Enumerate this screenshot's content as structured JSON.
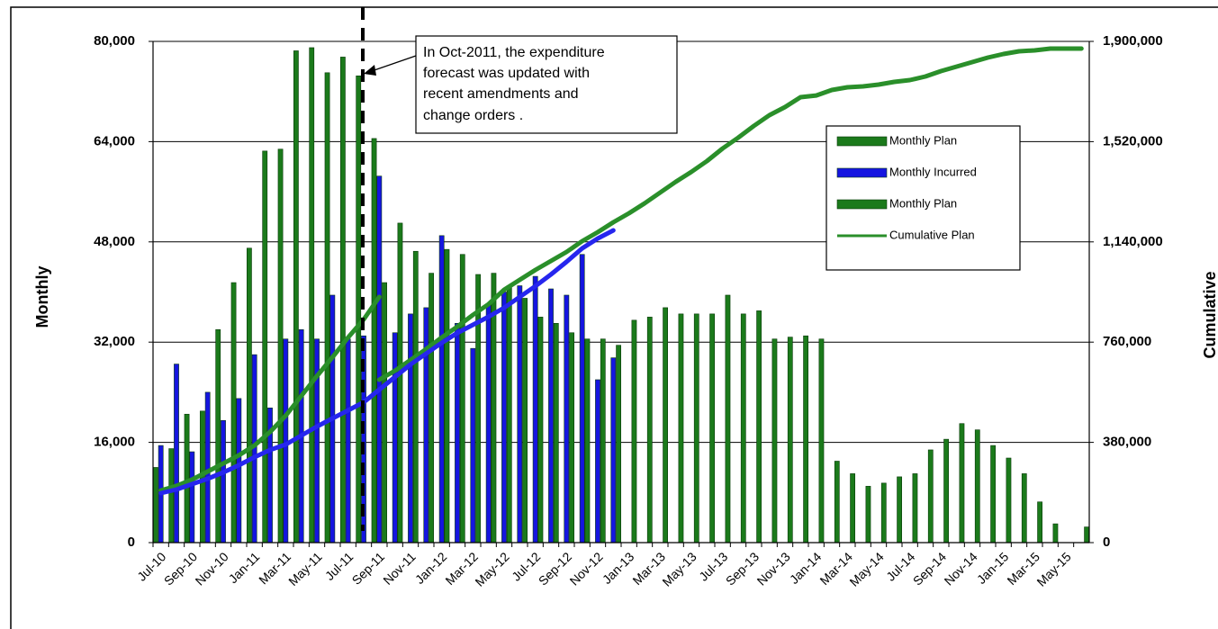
{
  "chart_data": {
    "type": "combo",
    "y_axis_title": "Monthly",
    "y2_axis_title": "Cumulative",
    "annotation": [
      "In  Oct-2011, the expenditure",
      "forecast was updated with",
      "recent amendments and",
      "change orders ."
    ],
    "categories": [
      "Jul-10",
      null,
      "Sep-10",
      null,
      "Nov-10",
      null,
      "Jan-11",
      null,
      "Mar-11",
      null,
      "May-11",
      null,
      "Jul-11",
      null,
      "Sep-11",
      null,
      "Nov-11",
      null,
      "Jan-12",
      null,
      "Mar-12",
      null,
      "May-12",
      null,
      "Jul-12",
      null,
      "Sep-12",
      null,
      "Nov-12",
      null,
      "Jan-13",
      null,
      "Mar-13",
      null,
      "May-13",
      null,
      "Jul-13",
      null,
      "Sep-13",
      null,
      "Nov-13",
      null,
      "Jan-14",
      null,
      "Mar-14",
      null,
      "May-14",
      null,
      "Jul-14",
      null,
      "Sep-14",
      null,
      "Nov-14",
      null,
      "Jan-15",
      null,
      "Mar-15",
      null,
      "May-15",
      null
    ],
    "ylim": [
      0,
      80000
    ],
    "yticks": [
      0,
      {
        "value": 16000,
        "label": "16,000"
      },
      {
        "value": 32000,
        "label": "32,000"
      },
      {
        "value": 48000,
        "label": "48,000"
      },
      {
        "value": 64000,
        "label": "64,000"
      },
      {
        "value": 80000,
        "label": "80,000"
      }
    ],
    "y2lim": [
      0,
      1900000
    ],
    "y2ticks": [
      0,
      {
        "value": 380000,
        "label": "380,000"
      },
      {
        "value": 760000,
        "label": "760,000"
      },
      {
        "value": 1140000,
        "label": "1,140,000"
      },
      {
        "value": 1520000,
        "label": "1,520,000"
      },
      {
        "value": 1900000,
        "label": "1,900,000"
      }
    ],
    "grid": true,
    "legend": "upper right",
    "series": [
      {
        "name": "Monthly Plan",
        "type": "bar",
        "color": "#1b7a1b",
        "values": [
          12000,
          15000,
          20500,
          21000,
          34000,
          41500,
          47000,
          62500,
          62800,
          78500,
          79000,
          75000,
          77500,
          74500,
          64500,
          null,
          null,
          null,
          null,
          null,
          null,
          null,
          null,
          null,
          null,
          null,
          null,
          null,
          null,
          null,
          null,
          null,
          null,
          null,
          null,
          null,
          null,
          null,
          null,
          null,
          null,
          null,
          null,
          null,
          null,
          null,
          null,
          null,
          null,
          null,
          null,
          null,
          null,
          null,
          null,
          null,
          null,
          null,
          null,
          null
        ]
      },
      {
        "name": "Monthly Incurred",
        "type": "bar",
        "color": "#1515e0",
        "values": [
          15500,
          28500,
          14500,
          24000,
          19500,
          23000,
          30000,
          21500,
          32500,
          34000,
          32500,
          39500,
          32500,
          33000,
          58500,
          33500,
          36500,
          37500,
          49000,
          35000,
          31000,
          38000,
          40000,
          41000,
          42500,
          40500,
          39500,
          46000,
          26000,
          29500,
          null,
          null,
          null,
          null,
          null,
          null,
          null,
          null,
          null,
          null,
          null,
          null,
          null,
          null,
          null,
          null,
          null,
          null,
          null,
          null,
          null,
          null,
          null,
          null,
          null,
          null,
          null,
          null,
          null,
          null
        ]
      },
      {
        "name": "Monthly Plan",
        "type": "bar",
        "color": "#1b7a1b",
        "values": [
          null,
          null,
          null,
          null,
          null,
          null,
          null,
          null,
          null,
          null,
          null,
          null,
          null,
          null,
          41500,
          51000,
          46500,
          43000,
          46800,
          46000,
          42800,
          43000,
          41000,
          39000,
          36000,
          35000,
          33500,
          32500,
          32500,
          31500,
          35500,
          36000,
          37500,
          36500,
          36500,
          36500,
          39500,
          36500,
          37000,
          32500,
          32800,
          33000,
          32500,
          13000,
          11000,
          9000,
          9500,
          10500,
          11000,
          14800,
          16500,
          19000,
          18000,
          15500,
          13500,
          11000,
          6500,
          3000,
          null,
          2500
        ]
      },
      {
        "name": "Cumulative Plan",
        "type": "line",
        "axis": "y2",
        "color": "#2a8f2a",
        "values": [
          null,
          null,
          null,
          null,
          null,
          null,
          null,
          null,
          null,
          null,
          null,
          null,
          null,
          null,
          617400,
          651500,
          692400,
          733400,
          777700,
          818700,
          863000,
          903900,
          958500,
          996000,
          1033500,
          1067600,
          1101700,
          1142700,
          1176800,
          1214300,
          1248400,
          1285900,
          1326800,
          1367800,
          1405300,
          1446200,
          1494000,
          1534900,
          1579300,
          1620200,
          1650900,
          1688400,
          1695000,
          1715800,
          1726000,
          1729400,
          1736300,
          1746500,
          1753300,
          1767000,
          1787400,
          1804500,
          1821500,
          1838600,
          1852200,
          1862400,
          1865800,
          1872700,
          1872700,
          1872700
        ]
      },
      {
        "type": "line",
        "axis": "y2",
        "color": "#2a8f2a",
        "values": [
          197800,
          214900,
          238800,
          269500,
          300200,
          330900,
          368400,
          419600,
          481000,
          556000,
          631000,
          702700,
          777700,
          846000,
          931200,
          null,
          null,
          null,
          null,
          null,
          null,
          null,
          null,
          null,
          null,
          null,
          null,
          null,
          null,
          null,
          null,
          null,
          null,
          null,
          null,
          null,
          null,
          null,
          null,
          null,
          null,
          null,
          null,
          null,
          null,
          null,
          null,
          null,
          null,
          null,
          null,
          null,
          null,
          null,
          null,
          null,
          null,
          null,
          null,
          null
        ]
      },
      {
        "type": "line",
        "axis": "y2",
        "color": "#2626ee",
        "values": [
          187600,
          201200,
          221700,
          242200,
          266100,
          293300,
          324000,
          351300,
          371800,
          405900,
          440000,
          470700,
          501400,
          532100,
          579900,
          627600,
          675400,
          716300,
          757200,
          794800,
          825500,
          856200,
          890300,
          931200,
          972100,
          1016500,
          1064200,
          1115400,
          1152900,
          1183600,
          null,
          null,
          null,
          null,
          null,
          null,
          null,
          null,
          null,
          null,
          null,
          null,
          null,
          null,
          null,
          null,
          null,
          null,
          null,
          null,
          null,
          null,
          null,
          null,
          null,
          null,
          null,
          null,
          null,
          null
        ]
      }
    ]
  }
}
